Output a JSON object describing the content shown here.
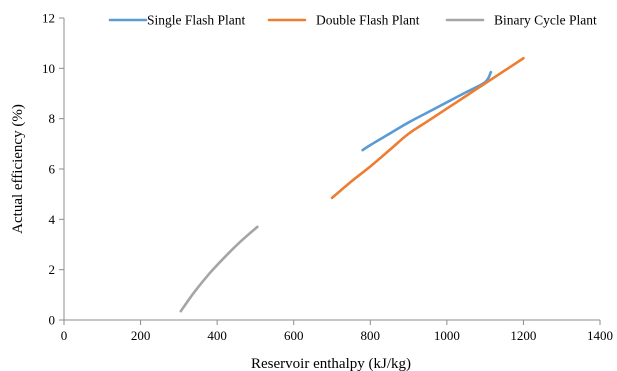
{
  "chart_data": {
    "type": "line",
    "title": "",
    "xlabel": "Reservoir enthalpy (kJ/kg)",
    "ylabel": "Actual efficiency (%)",
    "xlim": [
      0,
      1400
    ],
    "ylim": [
      0,
      12
    ],
    "xticks": [
      0,
      200,
      400,
      600,
      800,
      1000,
      1200,
      1400
    ],
    "yticks": [
      0,
      2,
      4,
      6,
      8,
      10,
      12
    ],
    "grid": false,
    "legend_position": "top",
    "series": [
      {
        "name": "Single Flash Plant",
        "color": "#5B9BD5",
        "x": [
          780,
          800,
          850,
          900,
          950,
          1000,
          1050,
          1100,
          1115
        ],
        "y": [
          6.75,
          6.95,
          7.4,
          7.85,
          8.25,
          8.65,
          9.05,
          9.45,
          9.85
        ]
      },
      {
        "name": "Double Flash Plant",
        "color": "#ED7D31",
        "x": [
          700,
          750,
          800,
          850,
          900,
          950,
          1000,
          1050,
          1100,
          1150,
          1200
        ],
        "y": [
          4.85,
          5.5,
          6.1,
          6.75,
          7.4,
          7.9,
          8.4,
          8.9,
          9.4,
          9.9,
          10.4
        ]
      },
      {
        "name": "Binary Cycle Plant",
        "color": "#A5A5A5",
        "x": [
          305,
          340,
          380,
          420,
          460,
          505
        ],
        "y": [
          0.35,
          1.1,
          1.85,
          2.5,
          3.1,
          3.7
        ]
      }
    ]
  }
}
